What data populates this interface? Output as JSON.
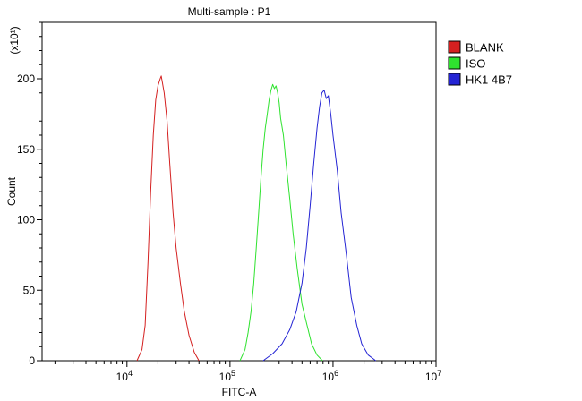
{
  "chart_data": {
    "type": "line",
    "title": "Multi-sample : P1",
    "xlabel": "FITC-A",
    "ylabel": "Count",
    "y_multiplier_label": "(x10¹)",
    "x_scale": "log",
    "xlim": [
      1500,
      10000000
    ],
    "ylim": [
      0,
      240
    ],
    "grid": false,
    "legend_position": "top-right",
    "x_ticks": [
      {
        "value": 10000,
        "base": "10",
        "exp": "4"
      },
      {
        "value": 100000,
        "base": "10",
        "exp": "5"
      },
      {
        "value": 1000000,
        "base": "10",
        "exp": "6"
      },
      {
        "value": 10000000,
        "base": "10",
        "exp": "7"
      }
    ],
    "y_ticks": [
      {
        "value": 0,
        "label": "0"
      },
      {
        "value": 50,
        "label": "50"
      },
      {
        "value": 100,
        "label": "100"
      },
      {
        "value": 150,
        "label": "150"
      },
      {
        "value": 200,
        "label": "200"
      }
    ],
    "series": [
      {
        "name": "BLANK",
        "color": "#d42020",
        "x": [
          12500,
          14000,
          15000,
          16000,
          17000,
          18000,
          19000,
          20000,
          21000,
          21500,
          22000,
          23000,
          24500,
          26000,
          28000,
          30000,
          33000,
          36000,
          40000,
          45000,
          50000
        ],
        "y": [
          0,
          8,
          25,
          70,
          120,
          160,
          185,
          195,
          200,
          202,
          198,
          190,
          170,
          140,
          105,
          80,
          55,
          35,
          18,
          6,
          0
        ]
      },
      {
        "name": "ISO",
        "color": "#2ee22e",
        "x": [
          125000,
          140000,
          150000,
          160000,
          170000,
          180000,
          190000,
          200000,
          210000,
          220000,
          230000,
          240000,
          250000,
          260000,
          270000,
          280000,
          290000,
          300000,
          310000,
          330000,
          350000,
          380000,
          410000,
          450000,
          500000,
          560000,
          620000,
          700000,
          790000
        ],
        "y": [
          0,
          8,
          20,
          35,
          55,
          80,
          105,
          130,
          150,
          165,
          175,
          185,
          192,
          196,
          193,
          195,
          190,
          183,
          172,
          160,
          140,
          115,
          90,
          65,
          40,
          25,
          12,
          4,
          0
        ]
      },
      {
        "name": "HK1 4B7",
        "color": "#2424d4",
        "x": [
          210000,
          260000,
          320000,
          380000,
          440000,
          500000,
          550000,
          600000,
          650000,
          700000,
          740000,
          780000,
          820000,
          860000,
          900000,
          950000,
          1000000,
          1100000,
          1200000,
          1350000,
          1500000,
          1700000,
          1900000,
          2200000,
          2600000
        ],
        "y": [
          0,
          5,
          12,
          22,
          35,
          55,
          80,
          110,
          140,
          165,
          180,
          190,
          192,
          186,
          188,
          175,
          160,
          135,
          105,
          75,
          45,
          25,
          12,
          4,
          0
        ]
      }
    ]
  }
}
